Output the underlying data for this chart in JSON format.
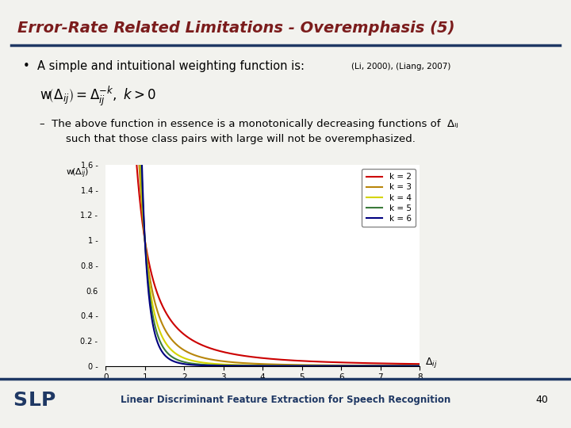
{
  "title": "Error-Rate Related Limitations - Overemphasis (5)",
  "title_color": "#7B1C1C",
  "title_fontsize": 14,
  "bg_color": "#F2F2EE",
  "bullet_text": "A simple and intuitional weighting function is:",
  "bullet_ref": "(Li, 2000), (Liang, 2007)",
  "sub_line1": "–  The above function in essence is a monotonically decreasing functions of  Δ",
  "sub_line1_suffix": "ij",
  "sub_line2": "   such that those class pairs with large will not be overemphasized.",
  "xmin": 0,
  "xmax": 8,
  "ymin": 0,
  "ymax": 1.6,
  "k_values": [
    2,
    3,
    4,
    5,
    6
  ],
  "k_colors": [
    "#CC0000",
    "#B8860B",
    "#D4D400",
    "#3A7A3A",
    "#000080"
  ],
  "k_labels": [
    "k = 2",
    "k = 3",
    "k = 4",
    "k = 5",
    "k = 6"
  ],
  "yticks": [
    0,
    0.2,
    0.4,
    0.6,
    0.8,
    1.0,
    1.2,
    1.4,
    1.6
  ],
  "ytick_labels": [
    "0 -",
    "0.2 -",
    "0.4 -",
    "0.6",
    "0.8 -",
    "1 -",
    "1.2 -",
    "1.4 -",
    "1.6 -"
  ],
  "xticks": [
    0,
    1,
    2,
    3,
    4,
    5,
    6,
    7,
    8
  ],
  "footer": "Linear Discriminant Feature Extraction for Speech Recognition",
  "page_number": "40",
  "separator_color": "#1F3864",
  "footer_color": "#1F3864"
}
